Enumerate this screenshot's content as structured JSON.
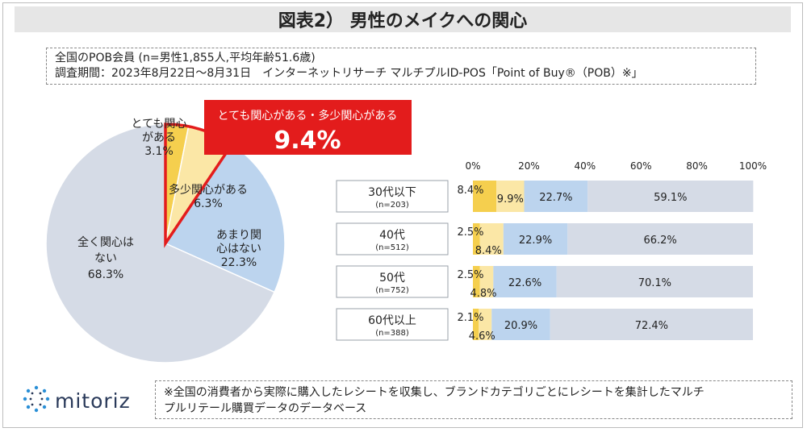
{
  "title": "図表2） 男性のメイクへの関心",
  "info": {
    "line1": "全国のPOB会員 (n=男性1,855人,平均年齢51.6歳)",
    "line2": "調査期間：2023年8月22日～8月31日　インターネットリサーチ マルチプルID-POS「Point of Buy®（POB）※」"
  },
  "callout": {
    "label": "とても関心がある・多少関心がある",
    "value": "9.4%"
  },
  "colors": {
    "very": "#f5cf4e",
    "some": "#fbe7a6",
    "notmuch": "#bcd4ee",
    "none": "#d5dbe6",
    "accent": "#e31c1c"
  },
  "chart_data": [
    {
      "type": "pie",
      "title": "男性のメイクへの関心",
      "slices": [
        {
          "label": "とても関心がある",
          "value": 3.1
        },
        {
          "label": "多少関心がある",
          "value": 6.3
        },
        {
          "label": "あまり関心はない",
          "value": 22.3
        },
        {
          "label": "全く関心はない",
          "value": 68.3
        }
      ],
      "slice_labels": [
        {
          "lines": [
            "とても関心",
            "がある",
            "3.1%"
          ]
        },
        {
          "lines": [
            "多少関心がある",
            "6.3%"
          ]
        },
        {
          "lines": [
            "あまり関",
            "心はない",
            "22.3%"
          ]
        },
        {
          "lines": [
            "全く関心は",
            "ない",
            "68.3%"
          ]
        }
      ]
    },
    {
      "type": "bar",
      "orientation": "horizontal",
      "stacked": true,
      "xlim": [
        0,
        100
      ],
      "ticks": [
        "0%",
        "20%",
        "40%",
        "60%",
        "80%",
        "100%"
      ],
      "categories": [
        {
          "label": "30代以下",
          "n": "(n=203)"
        },
        {
          "label": "40代",
          "n": "(n=512)"
        },
        {
          "label": "50代",
          "n": "(n=752)"
        },
        {
          "label": "60代以上",
          "n": "(n=388)"
        }
      ],
      "series": [
        {
          "name": "とても関心がある",
          "values": [
            8.4,
            2.5,
            2.5,
            2.1
          ],
          "labels": [
            "8.4%",
            "2.5%",
            "2.5%",
            "2.1%"
          ]
        },
        {
          "name": "多少関心がある",
          "values": [
            9.9,
            8.4,
            4.8,
            4.6
          ],
          "labels": [
            "9.9%",
            "8.4%",
            "4.8%",
            "4.6%"
          ]
        },
        {
          "name": "あまり関心はない",
          "values": [
            22.7,
            22.9,
            22.6,
            20.9
          ],
          "labels": [
            "22.7%",
            "22.9%",
            "22.6%",
            "20.9%"
          ]
        },
        {
          "name": "全く関心はない",
          "values": [
            59.1,
            66.2,
            70.1,
            72.4
          ],
          "labels": [
            "59.1%",
            "66.2%",
            "70.1%",
            "72.4%"
          ]
        }
      ]
    }
  ],
  "footer": {
    "line1": "※全国の消費者から実際に購入したレシートを収集し、ブランドカテゴリごとにレシートを集計したマルチ",
    "line2": "プルリテール購買データのデータベース"
  },
  "logo": {
    "text": "mitoriz",
    "icon": "dotted-circle-logo-icon"
  }
}
